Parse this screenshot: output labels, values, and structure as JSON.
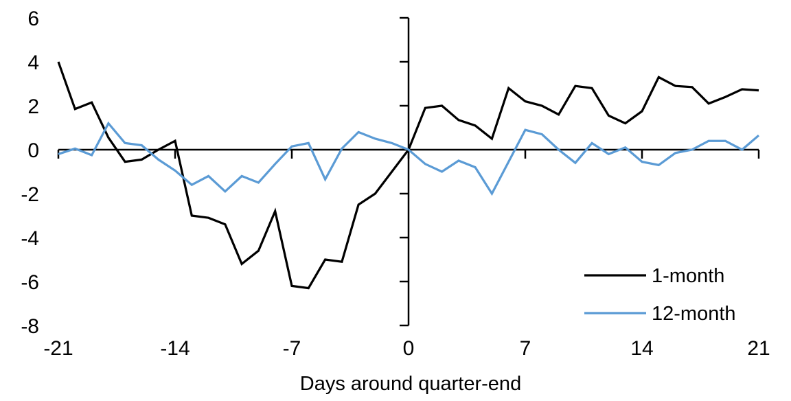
{
  "chart_data": {
    "type": "line",
    "title": "",
    "xlabel": "Days around quarter-end",
    "ylabel": "",
    "xlim": [
      -21,
      21
    ],
    "ylim": [
      -8,
      6
    ],
    "x_ticks": [
      -21,
      -14,
      -7,
      0,
      7,
      14,
      21
    ],
    "y_ticks": [
      6,
      4,
      2,
      0,
      -2,
      -4,
      -6,
      -8
    ],
    "grid": false,
    "legend_position": "inside-lower-right",
    "axis_color": "#000000",
    "x": [
      -21,
      -20,
      -19,
      -18,
      -17,
      -16,
      -15,
      -14,
      -13,
      -12,
      -11,
      -10,
      -9,
      -8,
      -7,
      -6,
      -5,
      -4,
      -3,
      -2,
      -1,
      0,
      1,
      2,
      3,
      4,
      5,
      6,
      7,
      8,
      9,
      10,
      11,
      12,
      13,
      14,
      15,
      16,
      17,
      18,
      19,
      20,
      21
    ],
    "series": [
      {
        "name": "1-month",
        "color": "#000000",
        "values": [
          4.0,
          1.85,
          2.15,
          0.55,
          -0.55,
          -0.45,
          0.0,
          0.4,
          -3.0,
          -3.1,
          -3.4,
          -5.2,
          -4.6,
          -2.8,
          -6.2,
          -6.3,
          -5.0,
          -5.1,
          -2.5,
          -2.0,
          -1.0,
          0.0,
          1.9,
          2.0,
          1.35,
          1.1,
          0.5,
          2.8,
          2.2,
          2.0,
          1.6,
          2.9,
          2.8,
          1.55,
          1.2,
          1.75,
          3.3,
          2.9,
          2.85,
          2.1,
          2.4,
          2.75,
          2.7
        ]
      },
      {
        "name": "12-month",
        "color": "#5B9BD5",
        "values": [
          -0.2,
          0.05,
          -0.25,
          1.2,
          0.3,
          0.2,
          -0.45,
          -0.95,
          -1.6,
          -1.2,
          -1.9,
          -1.2,
          -1.5,
          -0.65,
          0.15,
          0.3,
          -1.35,
          0.05,
          0.8,
          0.5,
          0.3,
          0.0,
          -0.65,
          -1.0,
          -0.5,
          -0.8,
          -2.0,
          -0.55,
          0.9,
          0.7,
          0.0,
          -0.6,
          0.3,
          -0.2,
          0.1,
          -0.55,
          -0.7,
          -0.15,
          0.0,
          0.4,
          0.4,
          0.0,
          0.65
        ]
      }
    ]
  }
}
